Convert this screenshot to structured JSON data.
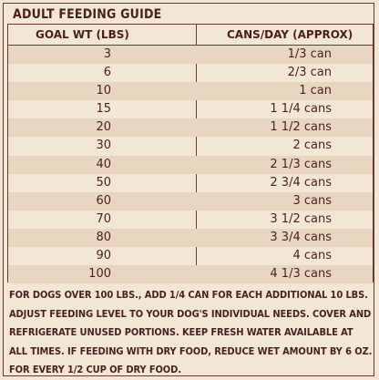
{
  "title": "ADULT FEEDING GUIDE",
  "table": {
    "headers": [
      "GOAL WT (LBS)",
      "CANS/DAY (APPROX)"
    ],
    "rows": [
      {
        "weight": "3",
        "cans": "1/3 can"
      },
      {
        "weight": "6",
        "cans": "2/3 can"
      },
      {
        "weight": "10",
        "cans": "1 can"
      },
      {
        "weight": "15",
        "cans": "1 1/4 cans"
      },
      {
        "weight": "20",
        "cans": "1 1/2 cans"
      },
      {
        "weight": "30",
        "cans": "2 cans"
      },
      {
        "weight": "40",
        "cans": "2 1/3 cans"
      },
      {
        "weight": "50",
        "cans": "2 3/4 cans"
      },
      {
        "weight": "60",
        "cans": "3 cans"
      },
      {
        "weight": "70",
        "cans": "3 1/2 cans"
      },
      {
        "weight": "80",
        "cans": "3 3/4 cans"
      },
      {
        "weight": "90",
        "cans": "4 cans"
      },
      {
        "weight": "100",
        "cans": "4 1/3 cans"
      }
    ]
  },
  "note": "FOR DOGS OVER 100 LBS., ADD 1/4 CAN FOR EACH ADDITIONAL 10 LBS. ADJUST FEEDING LEVEL TO YOUR DOG'S INDIVIDUAL NEEDS. COVER AND REFRIGERATE UNUSED PORTIONS. KEEP FRESH WATER AVAILABLE AT ALL TIMES. IF FEEDING WITH DRY FOOD, REDUCE WET AMOUNT BY 6 OZ. FOR EVERY 1/2 CUP OF DRY FOOD.",
  "colors": {
    "text": "#4a1f22",
    "background": "#f2e6d4",
    "stripe": "#e8d6c0",
    "border": "#6a3a3a"
  }
}
